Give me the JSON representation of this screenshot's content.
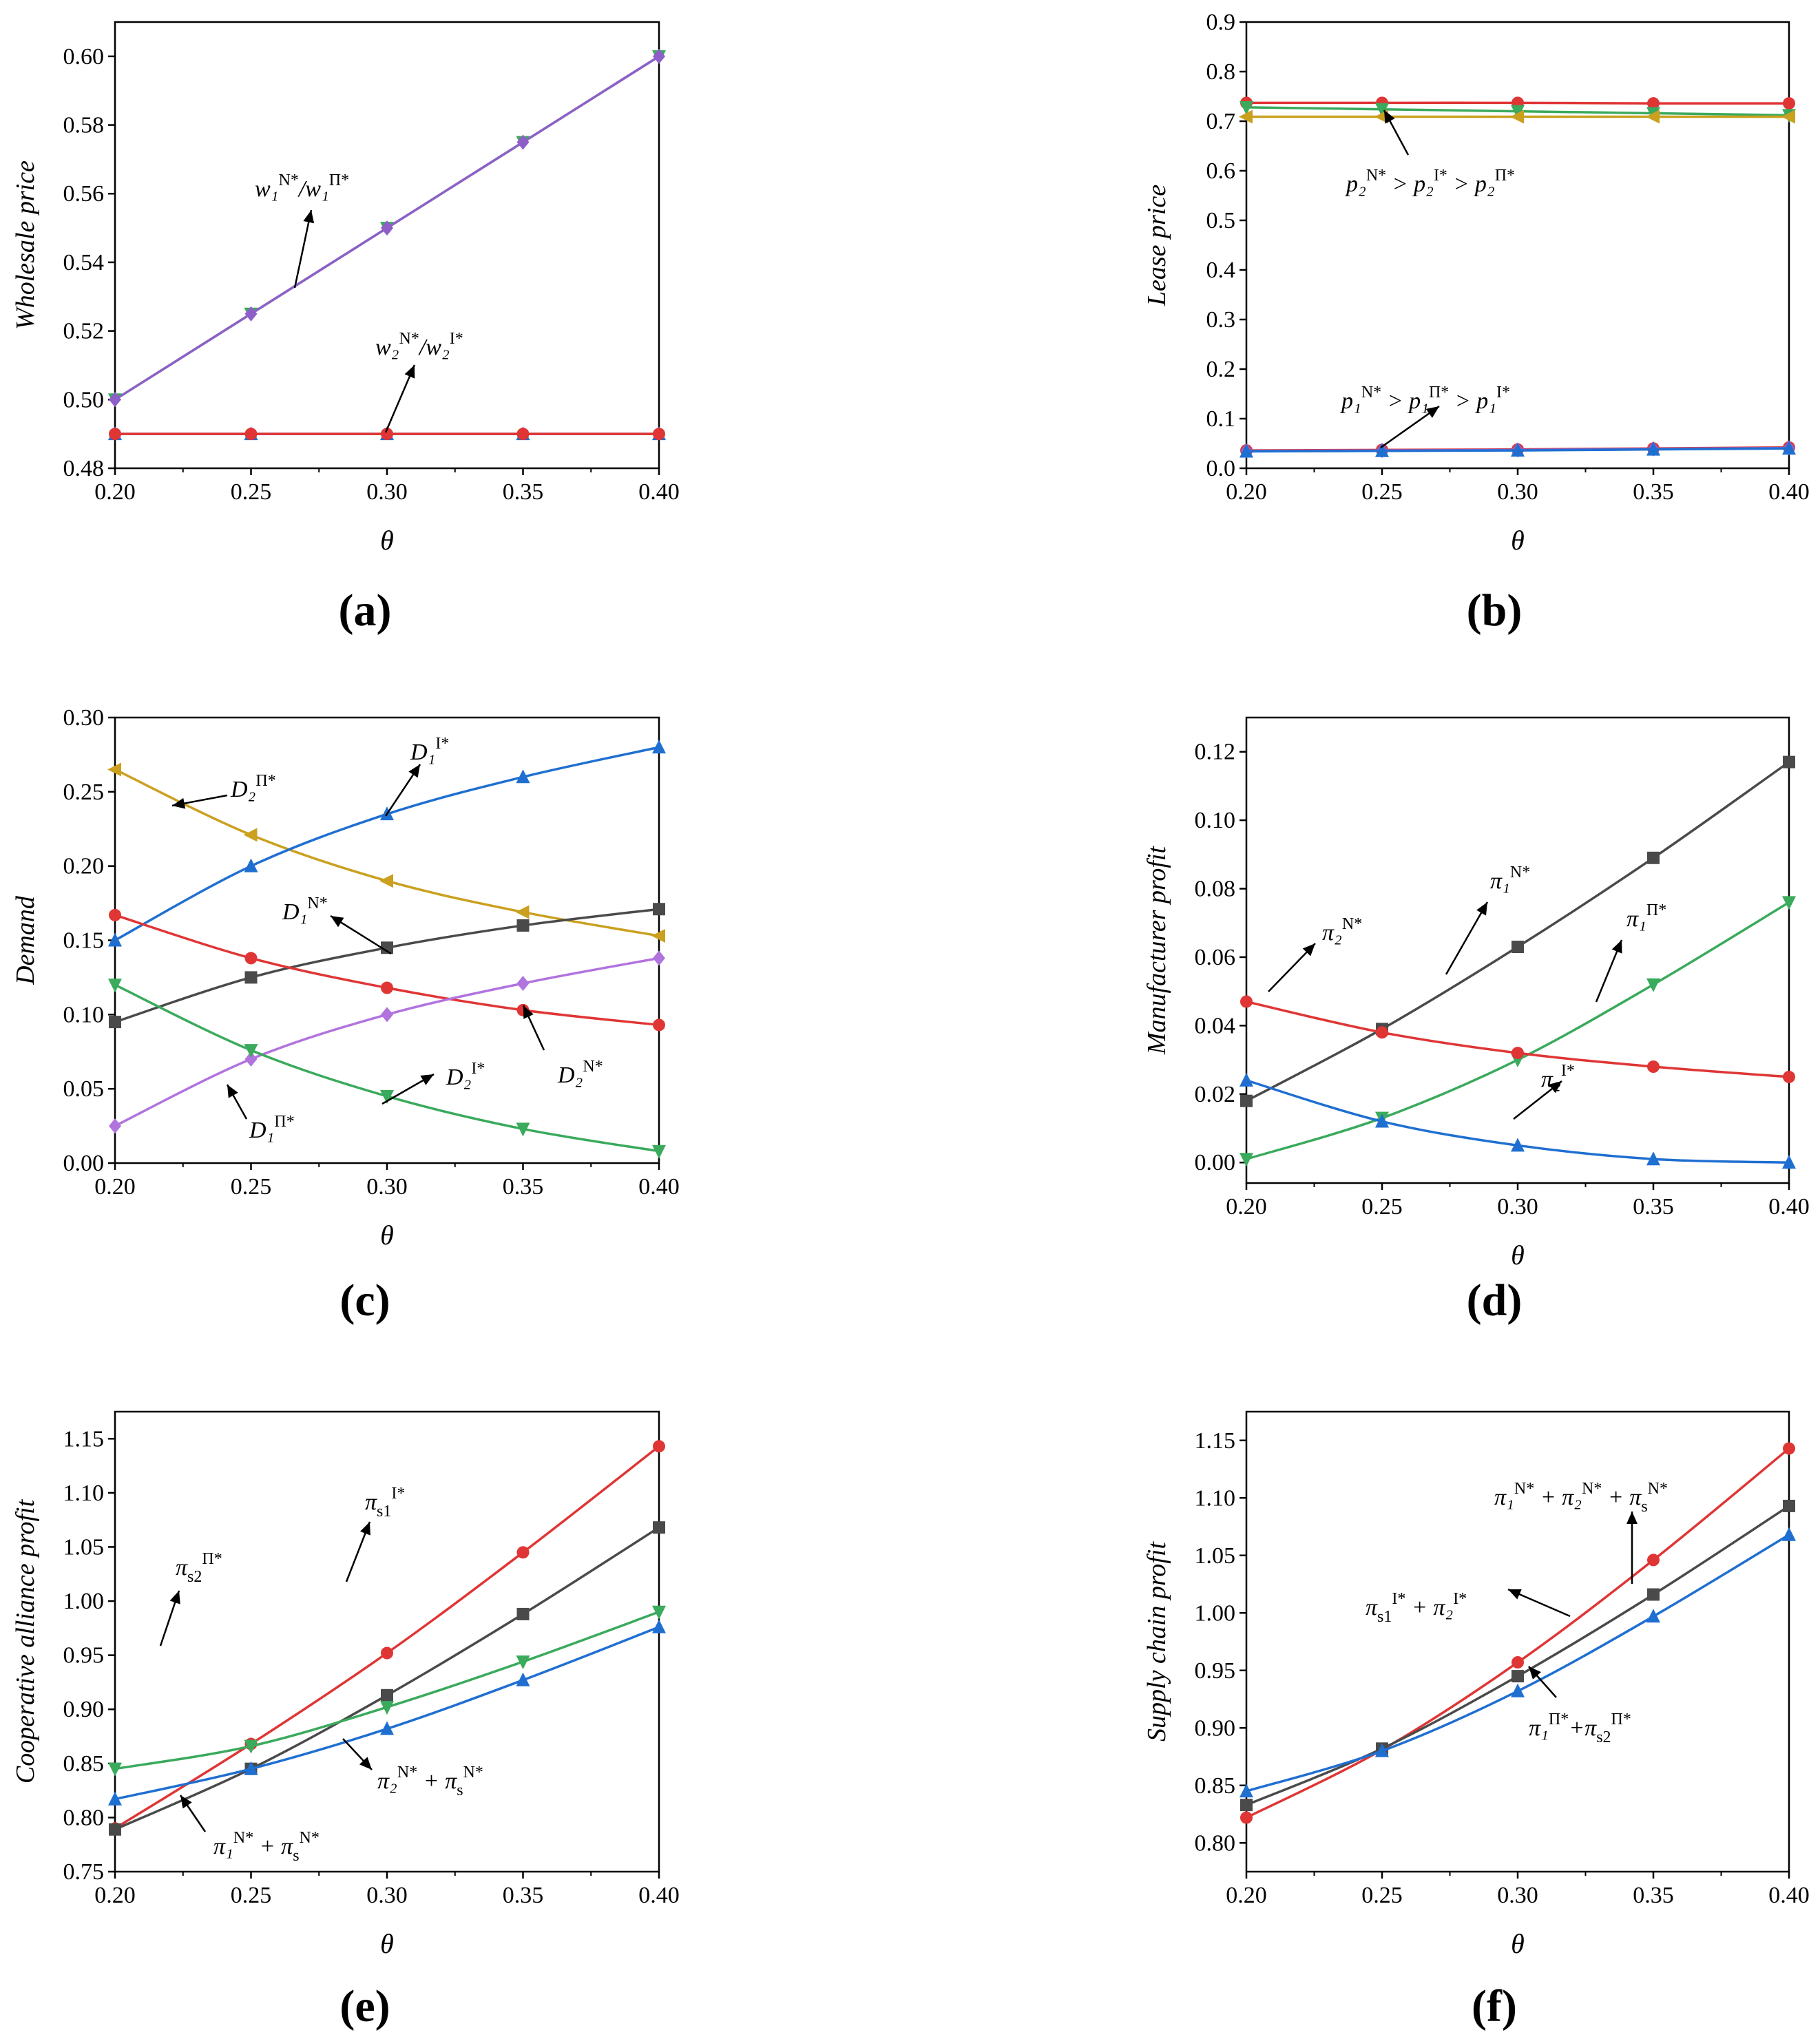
{
  "chart_data": [
    {
      "id": "a",
      "panel_label": "(a)",
      "type": "line",
      "ylabel": "Wholesale price",
      "xlabel": "θ",
      "xlim": [
        0.2,
        0.4
      ],
      "ylim": [
        0.48,
        0.61
      ],
      "xticks": [
        "0.20",
        "0.25",
        "0.30",
        "0.35",
        "0.40"
      ],
      "yticks": [
        "0.48",
        "0.50",
        "0.52",
        "0.54",
        "0.56",
        "0.58",
        "0.60"
      ],
      "x": [
        0.2,
        0.25,
        0.3,
        0.35,
        0.4
      ],
      "series": [
        {
          "name": "w1 N*/w1 Π*",
          "color": "#3aaa5c",
          "marker": "triangle-down",
          "values": [
            0.5,
            0.525,
            0.55,
            0.575,
            0.6
          ]
        },
        {
          "name": "w1 Π*",
          "color": "#8e5fc9",
          "marker": "diamond",
          "values": [
            0.5,
            0.525,
            0.55,
            0.575,
            0.6
          ]
        },
        {
          "name": "w2 N*/w2 I*",
          "color": "#1f6fd1",
          "marker": "triangle-up",
          "values": [
            0.49,
            0.49,
            0.49,
            0.49,
            0.49
          ]
        },
        {
          "name": "w2 I*",
          "color": "#e03535",
          "marker": "circle",
          "values": [
            0.49,
            0.49,
            0.49,
            0.49,
            0.49
          ]
        }
      ],
      "annotations": [
        {
          "text": "w₁",
          "sup": "N*",
          "text2": "/w₁",
          "sup2": "Π*"
        },
        {
          "text": "w₂",
          "sup": "N*",
          "text2": "/w₂",
          "sup2": "I*"
        }
      ]
    },
    {
      "id": "b",
      "panel_label": "(b)",
      "type": "line",
      "ylabel": "Lease price",
      "xlabel": "θ",
      "xlim": [
        0.2,
        0.4
      ],
      "ylim": [
        0.0,
        0.9
      ],
      "xticks": [
        "0.20",
        "0.25",
        "0.30",
        "0.35",
        "0.40"
      ],
      "yticks": [
        "0.0",
        "0.1",
        "0.2",
        "0.3",
        "0.4",
        "0.5",
        "0.6",
        "0.7",
        "0.8",
        "0.9"
      ],
      "x": [
        0.2,
        0.25,
        0.3,
        0.35,
        0.4
      ],
      "series": [
        {
          "name": "p2 N*",
          "color": "#e03535",
          "marker": "circle",
          "values": [
            0.737,
            0.737,
            0.737,
            0.736,
            0.736
          ]
        },
        {
          "name": "p2 I*",
          "color": "#3aaa5c",
          "marker": "triangle-down",
          "values": [
            0.728,
            0.724,
            0.72,
            0.716,
            0.712
          ]
        },
        {
          "name": "p2 Π*",
          "color": "#caa01e",
          "marker": "triangle-left",
          "values": [
            0.709,
            0.709,
            0.709,
            0.709,
            0.709
          ]
        },
        {
          "name": "p1 N*",
          "color": "#e03535",
          "marker": "circle",
          "values": [
            0.036,
            0.037,
            0.038,
            0.04,
            0.042
          ]
        },
        {
          "name": "p1 Π*",
          "color": "#8e5fc9",
          "marker": "diamond",
          "values": [
            0.035,
            0.036,
            0.037,
            0.039,
            0.041
          ]
        },
        {
          "name": "p1 I*",
          "color": "#1f6fd1",
          "marker": "triangle-up",
          "values": [
            0.034,
            0.035,
            0.036,
            0.038,
            0.04
          ]
        }
      ],
      "annotations": [
        {
          "text": "p₂",
          "sup": "N*",
          "text2": " > p₂",
          "sup2": "I*",
          "text3": " > p₂",
          "sup3": "Π*"
        },
        {
          "text": "p₁",
          "sup": "N*",
          "text2": " > p₁",
          "sup2": "Π*",
          "text3": " > p₁",
          "sup3": "I*"
        }
      ]
    },
    {
      "id": "c",
      "panel_label": "(c)",
      "type": "line",
      "ylabel": "Demand",
      "xlabel": "θ",
      "xlim": [
        0.2,
        0.4
      ],
      "ylim": [
        0.0,
        0.3
      ],
      "xticks": [
        "0.20",
        "0.25",
        "0.30",
        "0.35",
        "0.40"
      ],
      "yticks": [
        "0.00",
        "0.05",
        "0.10",
        "0.15",
        "0.20",
        "0.25",
        "0.30"
      ],
      "x": [
        0.2,
        0.25,
        0.3,
        0.35,
        0.4
      ],
      "series": [
        {
          "name": "D2 Π*",
          "color": "#caa01e",
          "marker": "triangle-left",
          "values": [
            0.265,
            0.221,
            0.19,
            0.169,
            0.153
          ]
        },
        {
          "name": "D1 I*",
          "color": "#1f6fd1",
          "marker": "triangle-up",
          "values": [
            0.15,
            0.2,
            0.235,
            0.26,
            0.28
          ]
        },
        {
          "name": "D1 N*",
          "color": "#4a4a4a",
          "marker": "square",
          "values": [
            0.095,
            0.125,
            0.145,
            0.16,
            0.171
          ]
        },
        {
          "name": "D2 N*",
          "color": "#e03535",
          "marker": "circle",
          "values": [
            0.167,
            0.138,
            0.118,
            0.103,
            0.093
          ]
        },
        {
          "name": "D1 Π*",
          "color": "#b173de",
          "marker": "diamond",
          "values": [
            0.025,
            0.07,
            0.1,
            0.121,
            0.138
          ]
        },
        {
          "name": "D2 I*",
          "color": "#3aaa5c",
          "marker": "triangle-down",
          "values": [
            0.12,
            0.076,
            0.045,
            0.023,
            0.008
          ]
        }
      ],
      "annotations": [
        {
          "text": "D₂",
          "sup": "Π*"
        },
        {
          "text": "D₁",
          "sup": "I*"
        },
        {
          "text": "D₁",
          "sup": "N*"
        },
        {
          "text": "D₂",
          "sup": "N*"
        },
        {
          "text": "D₂",
          "sup": "I*"
        },
        {
          "text": "D₁",
          "sup": "Π*"
        }
      ]
    },
    {
      "id": "d",
      "panel_label": "(d)",
      "type": "line",
      "ylabel": "Manufacturer profit",
      "xlabel": "θ",
      "xlim": [
        0.2,
        0.4
      ],
      "ylim": [
        -0.006,
        0.13
      ],
      "xticks": [
        "0.20",
        "0.25",
        "0.30",
        "0.35",
        "0.40"
      ],
      "yticks": [
        "0.00",
        "0.02",
        "0.04",
        "0.06",
        "0.08",
        "0.10",
        "0.12"
      ],
      "yticks_values": [
        0.0,
        0.02,
        0.04,
        0.06,
        0.08,
        0.1,
        0.12
      ],
      "x": [
        0.2,
        0.25,
        0.3,
        0.35,
        0.4
      ],
      "series": [
        {
          "name": "π1 N*",
          "color": "#4a4a4a",
          "marker": "square",
          "values": [
            0.018,
            0.039,
            0.063,
            0.089,
            0.117
          ]
        },
        {
          "name": "π1 Π*",
          "color": "#3aaa5c",
          "marker": "triangle-down",
          "values": [
            0.001,
            0.013,
            0.03,
            0.052,
            0.076
          ]
        },
        {
          "name": "π2 N*",
          "color": "#e03535",
          "marker": "circle",
          "values": [
            0.047,
            0.038,
            0.032,
            0.028,
            0.025
          ]
        },
        {
          "name": "π2 I*",
          "color": "#1f6fd1",
          "marker": "triangle-up",
          "values": [
            0.024,
            0.012,
            0.005,
            0.001,
            0.0
          ]
        }
      ],
      "annotations": [
        {
          "text": "π₁",
          "sup": "N*"
        },
        {
          "text": "π₂",
          "sup": "N*"
        },
        {
          "text": "π₁",
          "sup": "Π*"
        },
        {
          "text": "π₂",
          "sup": "I*"
        }
      ]
    },
    {
      "id": "e",
      "panel_label": "(e)",
      "type": "line",
      "ylabel": "Cooperative alliance profit",
      "xlabel": "θ",
      "xlim": [
        0.2,
        0.4
      ],
      "ylim": [
        0.75,
        1.175
      ],
      "xticks": [
        "0.20",
        "0.25",
        "0.30",
        "0.35",
        "0.40"
      ],
      "yticks": [
        "0.75",
        "0.80",
        "0.85",
        "0.90",
        "0.95",
        "1.00",
        "1.05",
        "1.10",
        "1.15"
      ],
      "x": [
        0.2,
        0.25,
        0.3,
        0.35,
        0.4
      ],
      "series": [
        {
          "name": "πs1 I*",
          "color": "#e03535",
          "marker": "circle",
          "values": [
            0.79,
            0.868,
            0.952,
            1.045,
            1.143
          ]
        },
        {
          "name": "π1 N* + πs N*",
          "color": "#4a4a4a",
          "marker": "square",
          "values": [
            0.789,
            0.845,
            0.913,
            0.988,
            1.068
          ]
        },
        {
          "name": "πs2 Π*",
          "color": "#3aaa5c",
          "marker": "triangle-down",
          "values": [
            0.845,
            0.866,
            0.902,
            0.944,
            0.99
          ]
        },
        {
          "name": "π2 N* + πs N*",
          "color": "#1f6fd1",
          "marker": "triangle-up",
          "values": [
            0.817,
            0.845,
            0.882,
            0.927,
            0.976
          ]
        }
      ],
      "annotations": [
        {
          "text": "π",
          "sub": "s1",
          "sup": "I*"
        },
        {
          "text": "π",
          "sub": "s2",
          "sup": "Π*"
        },
        {
          "text": "π₂",
          "sup": "N*",
          "text2": " + π",
          "sub2": "s",
          "sup2": "N*"
        },
        {
          "text": "π₁",
          "sup": "N*",
          "text2": " + π",
          "sub2": "s",
          "sup2": "N*"
        }
      ]
    },
    {
      "id": "f",
      "panel_label": "(f)",
      "type": "line",
      "ylabel": "Supply chain profit",
      "xlabel": "θ",
      "xlim": [
        0.2,
        0.4
      ],
      "ylim": [
        0.775,
        1.175
      ],
      "xticks": [
        "0.20",
        "0.25",
        "0.30",
        "0.35",
        "0.40"
      ],
      "yticks": [
        "0.80",
        "0.85",
        "0.90",
        "0.95",
        "1.00",
        "1.05",
        "1.10",
        "1.15"
      ],
      "x": [
        0.2,
        0.25,
        0.3,
        0.35,
        0.4
      ],
      "series": [
        {
          "name": "π1 N* + π2 N* + πs N*",
          "color": "#e03535",
          "marker": "circle",
          "values": [
            0.822,
            0.881,
            0.957,
            1.046,
            1.143
          ]
        },
        {
          "name": "πs1 I* + π2 I*",
          "color": "#4a4a4a",
          "marker": "square",
          "values": [
            0.833,
            0.882,
            0.945,
            1.016,
            1.093
          ]
        },
        {
          "name": "π1 Π* + πs2 Π*",
          "color": "#1f6fd1",
          "marker": "triangle-up",
          "values": [
            0.845,
            0.88,
            0.932,
            0.997,
            1.068
          ]
        }
      ],
      "annotations": [
        {
          "text": "π₁",
          "sup": "N*",
          "text2": " + π₂",
          "sup2": "N*",
          "text3": " + π",
          "sub3": "s",
          "sup3": "N*"
        },
        {
          "text": "π",
          "sub": "s1",
          "sup": "I*",
          "text2": " + π₂",
          "sup2": "I*"
        },
        {
          "text": "π₁",
          "sup": "Π*",
          "text2": "+π",
          "sub2": "s2",
          "sup2": "Π*"
        }
      ]
    }
  ]
}
